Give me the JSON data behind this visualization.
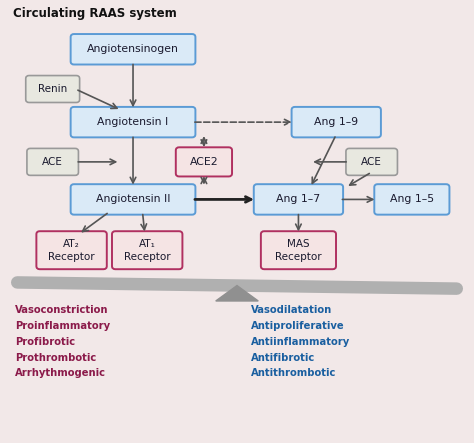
{
  "title": "Circulating RAAS system",
  "bg_color": "#f2e8e8",
  "blue_box_fill": "#daeaf7",
  "blue_box_edge": "#5b9bd5",
  "gray_box_fill": "#e8e8e0",
  "gray_box_edge": "#999999",
  "red_box_fill": "#f5e4e4",
  "red_box_edge": "#b03060",
  "text_dark": "#1a1a2e",
  "left_text_color": "#8b1a4a",
  "right_text_color": "#1a5fa0",
  "arrow_color": "#555555",
  "arrow_bold_color": "#222222",
  "scale_color": "#b0b0b0",
  "triangle_color": "#909090",
  "left_terms": [
    "Vasoconstriction",
    "Proinflammatory",
    "Profibrotic",
    "Prothrombotic",
    "Arrhythmogenic"
  ],
  "right_terms": [
    "Vasodilatation",
    "Antiproliferative",
    "Antiinflammatory",
    "Antifibrotic",
    "Antithrombotic"
  ]
}
